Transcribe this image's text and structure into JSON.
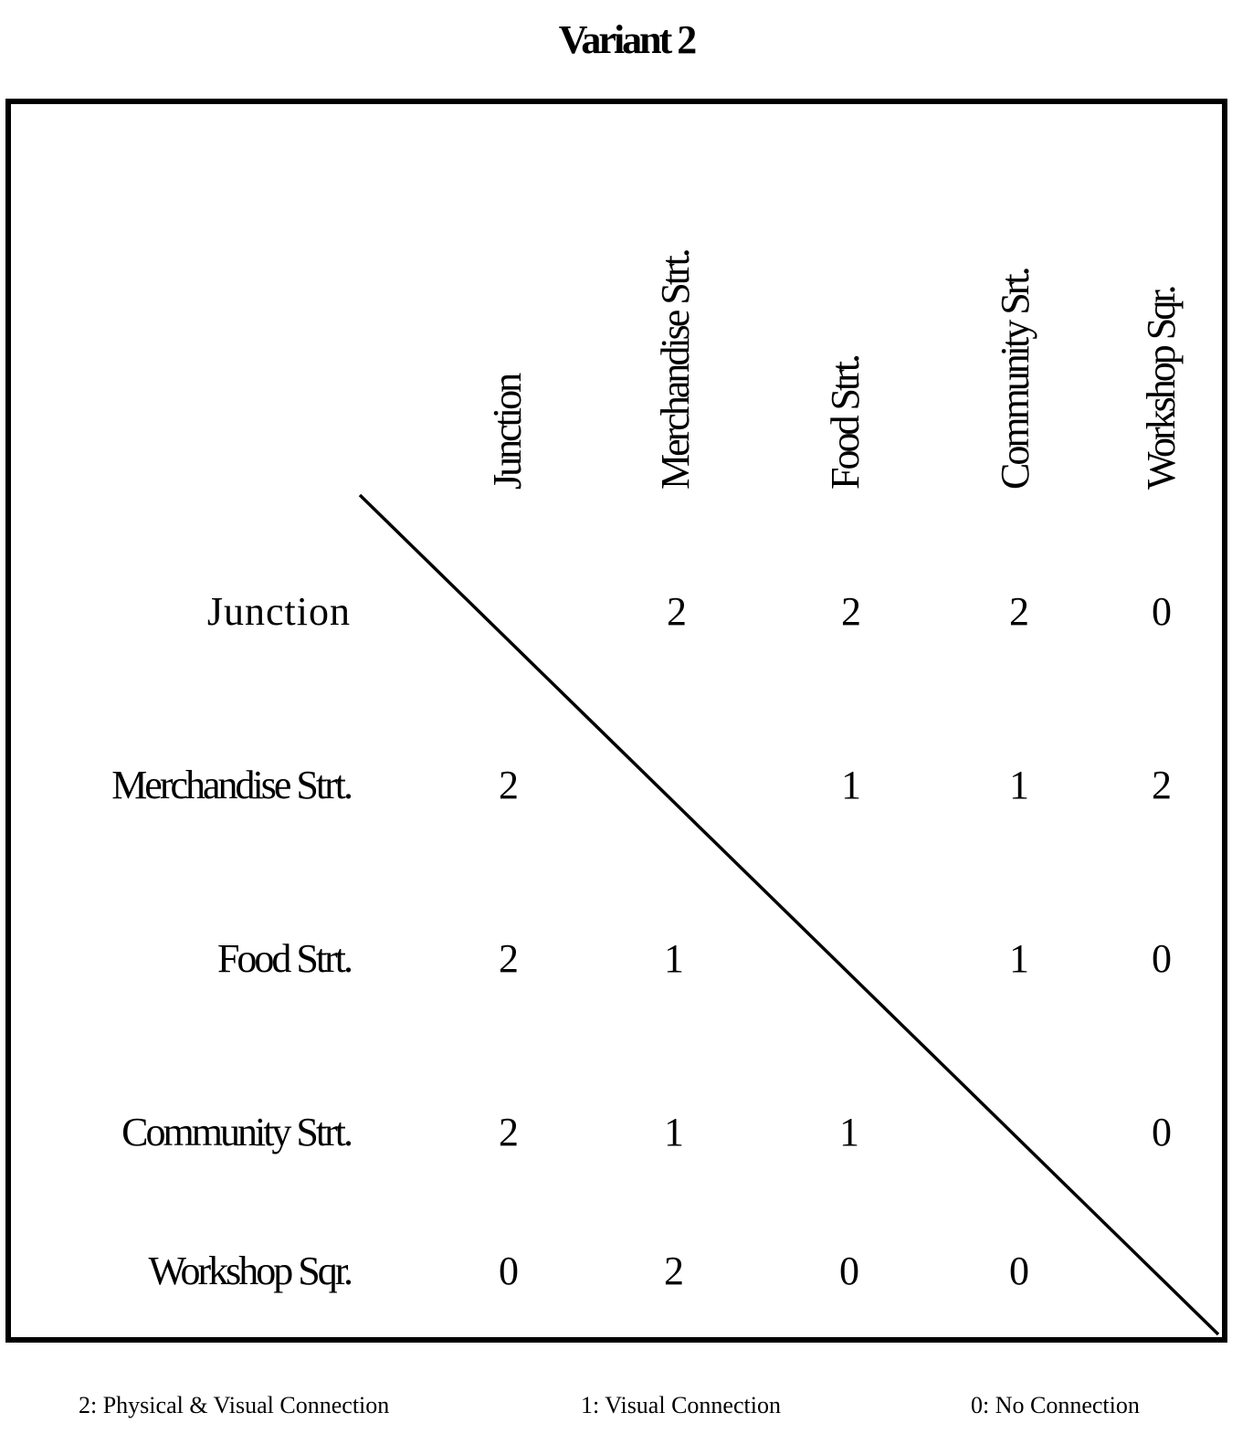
{
  "title": "Variant 2",
  "matrix": {
    "columns": [
      "Junction",
      "Merchandise Strt.",
      "Food Strt.",
      "Community Srt.",
      "Workshop Sqr."
    ],
    "rows": [
      {
        "label": "Junction",
        "values": [
          "",
          "2",
          "2",
          "2",
          "0"
        ]
      },
      {
        "label": "Merchandise Strt.",
        "values": [
          "2",
          "",
          "1",
          "1",
          "2"
        ]
      },
      {
        "label": "Food Strt.",
        "values": [
          "2",
          "1",
          "",
          "1",
          "0"
        ]
      },
      {
        "label": "Community Strt.",
        "values": [
          "2",
          "1",
          "1",
          "",
          "0"
        ]
      },
      {
        "label": "Workshop Sqr.",
        "values": [
          "0",
          "2",
          "0",
          "0",
          ""
        ]
      }
    ]
  },
  "legend": [
    "2: Physical & Visual Connection",
    "1: Visual Connection",
    "0: No Connection"
  ]
}
